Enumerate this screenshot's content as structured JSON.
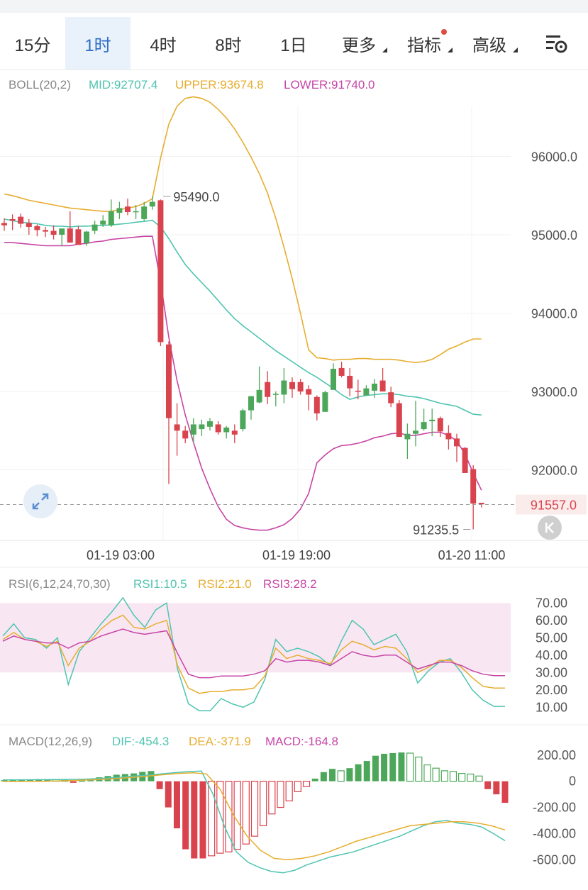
{
  "tabs": [
    {
      "label": "15分",
      "active": false,
      "has_menu": false,
      "badge": false
    },
    {
      "label": "1时",
      "active": true,
      "has_menu": false,
      "badge": false
    },
    {
      "label": "4时",
      "active": false,
      "has_menu": false,
      "badge": false
    },
    {
      "label": "8时",
      "active": false,
      "has_menu": false,
      "badge": false
    },
    {
      "label": "1日",
      "active": false,
      "has_menu": false,
      "badge": false
    },
    {
      "label": "更多",
      "active": false,
      "has_menu": true,
      "badge": false
    },
    {
      "label": "指标",
      "active": false,
      "has_menu": true,
      "badge": true
    },
    {
      "label": "高级",
      "active": false,
      "has_menu": true,
      "badge": false
    }
  ],
  "icons": {
    "settings": "chart-settings-icon",
    "expand": "expand-arrows-icon",
    "back": "scroll-to-latest-icon"
  },
  "colors": {
    "up": "#4da75a",
    "down": "#d9434e",
    "mid": "#4fc4b0",
    "upper": "#e7ad2f",
    "lower": "#c745a6",
    "accent": "#2f6fc4",
    "badge": "#e04a3f"
  },
  "chart_data": [
    {
      "type": "candlestick",
      "indicator": {
        "label": "BOLL(20,2)",
        "mid": "MID:92707.4",
        "upper": "UPPER:93674.8",
        "lower": "LOWER:91740.0"
      },
      "y_ticks": [
        "96000.0",
        "95000.0",
        "94000.0",
        "93000.0",
        "92000.0"
      ],
      "ylim": [
        91100,
        97000
      ],
      "x_ticks": [
        "01-19 03:00",
        "01-19 19:00",
        "01-20 11:00"
      ],
      "current_price": "91557.0",
      "annotations": {
        "high": "95490.0",
        "low": "91235.5"
      },
      "ohlc": [
        [
          95150,
          95210,
          95050,
          95120
        ],
        [
          95200,
          95260,
          95060,
          95180
        ],
        [
          95230,
          95270,
          95090,
          95140
        ],
        [
          95150,
          95200,
          95000,
          95100
        ],
        [
          95110,
          95130,
          94980,
          95060
        ],
        [
          95060,
          95100,
          94970,
          95040
        ],
        [
          95050,
          95120,
          94940,
          95000
        ],
        [
          95000,
          95050,
          94860,
          95080
        ],
        [
          95080,
          95300,
          94900,
          94900
        ],
        [
          95070,
          95110,
          94880,
          94870
        ],
        [
          94890,
          95050,
          94860,
          95040
        ],
        [
          95050,
          95180,
          95010,
          95130
        ],
        [
          95130,
          95250,
          95100,
          95180
        ],
        [
          95120,
          95450,
          95100,
          95300
        ],
        [
          95280,
          95420,
          95200,
          95340
        ],
        [
          95360,
          95460,
          95250,
          95290
        ],
        [
          95300,
          95380,
          95200,
          95300
        ],
        [
          95200,
          95420,
          95180,
          95360
        ],
        [
          95360,
          95490,
          95320,
          95420
        ],
        [
          95440,
          95450,
          93580,
          93630
        ],
        [
          93600,
          93640,
          91820,
          92660
        ],
        [
          92580,
          92850,
          92180,
          92500
        ],
        [
          92500,
          92560,
          92340,
          92400
        ],
        [
          92450,
          92660,
          92350,
          92580
        ],
        [
          92520,
          92640,
          92430,
          92580
        ],
        [
          92550,
          92660,
          92500,
          92620
        ],
        [
          92580,
          92620,
          92450,
          92480
        ],
        [
          92480,
          92560,
          92400,
          92540
        ],
        [
          92500,
          92580,
          92340,
          92450
        ],
        [
          92520,
          92780,
          92490,
          92760
        ],
        [
          92760,
          92940,
          92640,
          92940
        ],
        [
          92860,
          93320,
          92850,
          93020
        ],
        [
          93120,
          93260,
          92840,
          92930
        ],
        [
          92960,
          93000,
          92810,
          92970
        ],
        [
          92960,
          93300,
          92850,
          93140
        ],
        [
          93120,
          93180,
          92920,
          93030
        ],
        [
          93120,
          93160,
          92960,
          93000
        ],
        [
          93030,
          93080,
          92760,
          92960
        ],
        [
          92930,
          92950,
          92630,
          92720
        ],
        [
          92740,
          93010,
          92740,
          92990
        ],
        [
          93020,
          93360,
          93030,
          93290
        ],
        [
          93300,
          93380,
          93180,
          93200
        ],
        [
          93200,
          93300,
          92940,
          93040
        ],
        [
          93010,
          93150,
          92900,
          93000
        ],
        [
          92950,
          93080,
          92980,
          93040
        ],
        [
          93010,
          93160,
          92920,
          93100
        ],
        [
          93140,
          93300,
          93000,
          93000
        ],
        [
          92990,
          93060,
          92800,
          92850
        ],
        [
          92850,
          92890,
          92430,
          92420
        ],
        [
          92390,
          92590,
          92140,
          92460
        ],
        [
          92460,
          92880,
          92300,
          92500
        ],
        [
          92520,
          92780,
          92500,
          92610
        ],
        [
          92620,
          92780,
          92430,
          92640
        ],
        [
          92660,
          92680,
          92420,
          92490
        ],
        [
          92470,
          92570,
          92260,
          92390
        ],
        [
          92400,
          92460,
          92100,
          92300
        ],
        [
          92280,
          92290,
          91960,
          91960
        ],
        [
          92010,
          92060,
          91240,
          91570
        ],
        [
          91580,
          91580,
          91520,
          91560
        ]
      ],
      "series": [
        {
          "name": "MID",
          "values": [
            95200,
            95180,
            95160,
            95150,
            95140,
            95120,
            95110,
            95110,
            95100,
            95110,
            95110,
            95115,
            95120,
            95125,
            95135,
            95145,
            95160,
            95170,
            95185,
            95100,
            94950,
            94780,
            94620,
            94500,
            94390,
            94280,
            94160,
            94040,
            93930,
            93840,
            93760,
            93680,
            93600,
            93520,
            93450,
            93380,
            93310,
            93240,
            93180,
            93110,
            93040,
            92960,
            92900,
            92930,
            92950,
            92960,
            92970,
            92970,
            92960,
            92940,
            92930,
            92910,
            92880,
            92850,
            92830,
            92810,
            92760,
            92710,
            92700
          ]
        },
        {
          "name": "UPPER",
          "values": [
            95520,
            95500,
            95470,
            95440,
            95420,
            95400,
            95380,
            95360,
            95340,
            95330,
            95320,
            95310,
            95300,
            95300,
            95320,
            95340,
            95360,
            95400,
            95460,
            95980,
            96410,
            96640,
            96740,
            96760,
            96740,
            96690,
            96600,
            96490,
            96350,
            96180,
            95990,
            95780,
            95530,
            95210,
            94840,
            94440,
            94000,
            93530,
            93430,
            93420,
            93400,
            93410,
            93410,
            93420,
            93420,
            93410,
            93410,
            93410,
            93400,
            93380,
            93370,
            93380,
            93410,
            93470,
            93540,
            93580,
            93630,
            93670,
            93670
          ]
        },
        {
          "name": "LOWER",
          "values": [
            94900,
            94900,
            94890,
            94880,
            94870,
            94860,
            94860,
            94860,
            94860,
            94880,
            94890,
            94910,
            94920,
            94940,
            94950,
            94960,
            94970,
            94980,
            94980,
            94400,
            93690,
            93140,
            92700,
            92350,
            92020,
            91760,
            91530,
            91370,
            91290,
            91260,
            91240,
            91230,
            91230,
            91260,
            91300,
            91380,
            91500,
            91700,
            92090,
            92190,
            92270,
            92310,
            92320,
            92340,
            92370,
            92410,
            92430,
            92460,
            92470,
            92440,
            92440,
            92460,
            92480,
            92480,
            92440,
            92370,
            92200,
            91960,
            91740
          ]
        }
      ]
    },
    {
      "type": "line",
      "indicator": {
        "label": "RSI(6,12,24,70,30)",
        "rsi1": "RSI1:10.5",
        "rsi2": "RSI2:21.0",
        "rsi3": "RSI3:28.2"
      },
      "y_ticks": [
        "70.00",
        "60.00",
        "50.00",
        "40.00",
        "30.00",
        "20.00",
        "10.00"
      ],
      "ylim": [
        4,
        75
      ],
      "band": [
        30,
        70
      ],
      "series": [
        {
          "name": "RSI1",
          "values": [
            51,
            58,
            50,
            49,
            44,
            50,
            23,
            42,
            50,
            58,
            65,
            73,
            63,
            56,
            66,
            70,
            32,
            12,
            8,
            8,
            15,
            12,
            10,
            13,
            26,
            49,
            42,
            44,
            42,
            39,
            34,
            48,
            60,
            55,
            46,
            49,
            52,
            42,
            24,
            31,
            36,
            38,
            30,
            20,
            14,
            10.5,
            10.5
          ]
        },
        {
          "name": "RSI2",
          "values": [
            49,
            53,
            49,
            48,
            45,
            48,
            34,
            44,
            48,
            55,
            60,
            63,
            56,
            55,
            58,
            60,
            34,
            21,
            18,
            19,
            19,
            20,
            20,
            21,
            28,
            44,
            38,
            40,
            38,
            37,
            35,
            43,
            48,
            46,
            43,
            45,
            44,
            38,
            30,
            33,
            37,
            37,
            33,
            27,
            22,
            21,
            21
          ]
        },
        {
          "name": "RSI3",
          "values": [
            48,
            51,
            49,
            48,
            47,
            47,
            44,
            47,
            48,
            51,
            53,
            55,
            53,
            52,
            53,
            54,
            41,
            29,
            27,
            27,
            28,
            28,
            28,
            29,
            31,
            38,
            36,
            37,
            37,
            36,
            34,
            38,
            42,
            40,
            39,
            40,
            40,
            36,
            32,
            34,
            36,
            36,
            34,
            31,
            29,
            28.2,
            28.2
          ]
        }
      ]
    },
    {
      "type": "bar",
      "indicator": {
        "label": "MACD(12,26,9)",
        "dif": "DIF:-454.3",
        "dea": "DEA:-371.9",
        "macd": "MACD:-164.8"
      },
      "y_ticks": [
        "200.00",
        "0",
        "-200.00",
        "-400.00",
        "-600.00"
      ],
      "ylim": [
        -750,
        280
      ],
      "hist": [
        8,
        10,
        12,
        14,
        15,
        15,
        14,
        10,
        -12,
        5,
        18,
        30,
        40,
        50,
        55,
        60,
        72,
        78,
        -60,
        -200,
        -360,
        -520,
        -590,
        -590,
        -570,
        -550,
        -540,
        -520,
        -480,
        -420,
        -340,
        -250,
        -200,
        -150,
        -80,
        -40,
        20,
        70,
        95,
        80,
        100,
        130,
        155,
        195,
        210,
        215,
        220,
        215,
        185,
        125,
        100,
        80,
        75,
        60,
        55,
        40,
        -60,
        -100,
        -164.8
      ],
      "series": [
        {
          "name": "DIF",
          "values": [
            10,
            10,
            11,
            12,
            12,
            13,
            14,
            16,
            20,
            25,
            30,
            38,
            44,
            52,
            60,
            68,
            74,
            78,
            -100,
            -350,
            -540,
            -620,
            -660,
            -690,
            -700,
            -680,
            -640,
            -610,
            -580,
            -560,
            -540,
            -510,
            -480,
            -450,
            -420,
            -380,
            -340,
            -310,
            -300,
            -320,
            -330,
            -350,
            -400,
            -454.3
          ]
        },
        {
          "name": "DEA",
          "values": [
            -2,
            -2,
            -1,
            0,
            2,
            5,
            9,
            13,
            18,
            25,
            33,
            42,
            52,
            60,
            64,
            56,
            -60,
            -260,
            -420,
            -530,
            -590,
            -600,
            -590,
            -570,
            -540,
            -500,
            -460,
            -430,
            -400,
            -370,
            -340,
            -330,
            -320,
            -310,
            -310,
            -320,
            -340,
            -371.9
          ]
        }
      ]
    }
  ]
}
